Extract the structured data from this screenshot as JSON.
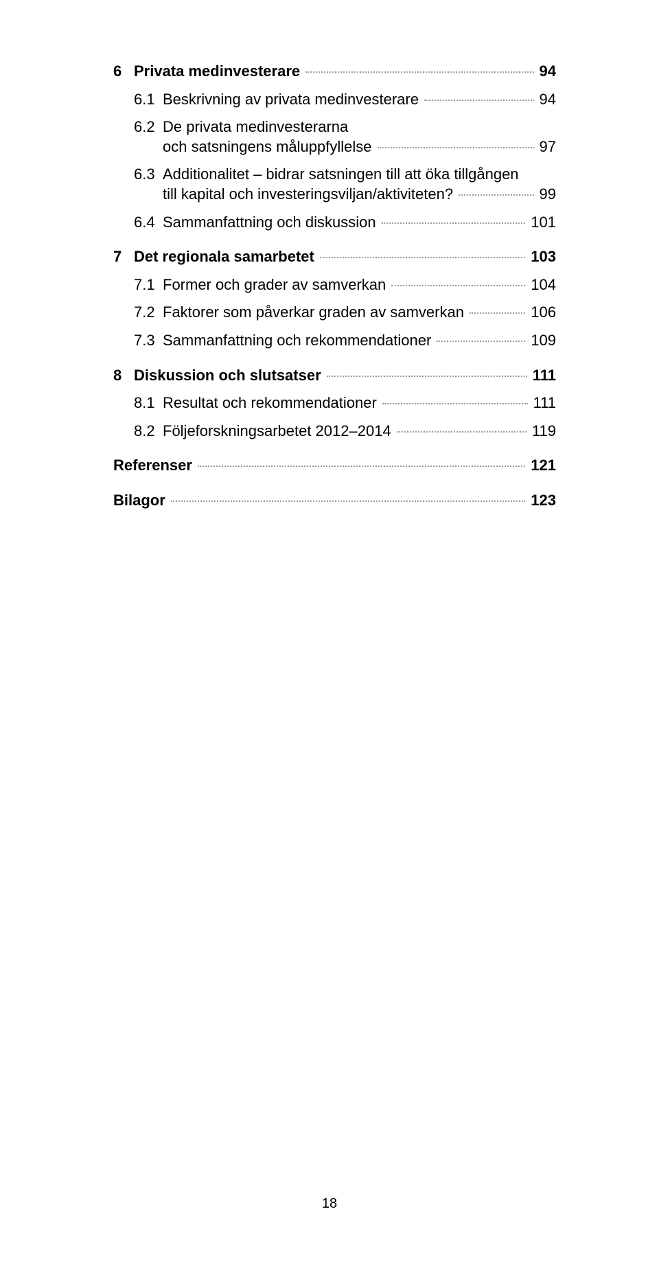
{
  "page_number": "18",
  "colors": {
    "text": "#000000",
    "leader": "#9a9a9a",
    "background": "#ffffff"
  },
  "typography": {
    "body_fontsize_pt": 16,
    "line_height": 1.3,
    "bold_weight": 700
  },
  "toc": [
    {
      "kind": "chapter",
      "num": "6",
      "label": "Privata medinvesterare",
      "page": "94"
    },
    {
      "kind": "section",
      "num": "6.1",
      "label": "Beskrivning av privata medinvesterare",
      "page": "94"
    },
    {
      "kind": "section-multiline",
      "num": "6.2",
      "line1": "De privata medinvesterarna",
      "line2": "och satsningens måluppfyllelse",
      "page": "97"
    },
    {
      "kind": "section-multiline",
      "num": "6.3",
      "line1": "Additionalitet – bidrar satsningen till att öka tillgången",
      "line2": "till kapital och investeringsviljan/aktiviteten?",
      "page": "99"
    },
    {
      "kind": "section",
      "num": "6.4",
      "label": "Sammanfattning och diskussion",
      "page": "101"
    },
    {
      "kind": "chapter",
      "num": "7",
      "label": "Det regionala samarbetet",
      "page": "103"
    },
    {
      "kind": "section",
      "num": "7.1",
      "label": "Former och grader av samverkan",
      "page": "104"
    },
    {
      "kind": "section",
      "num": "7.2",
      "label": "Faktorer som påverkar graden av samverkan",
      "page": "106"
    },
    {
      "kind": "section",
      "num": "7.3",
      "label": "Sammanfattning och rekommendationer",
      "page": "109"
    },
    {
      "kind": "chapter",
      "num": "8",
      "label": "Diskussion och slutsatser",
      "page": "111"
    },
    {
      "kind": "section",
      "num": "8.1",
      "label": "Resultat och rekommendationer",
      "page": "111"
    },
    {
      "kind": "section",
      "num": "8.2",
      "label": "Följeforskningsarbetet 2012–2014",
      "page": "119"
    },
    {
      "kind": "front",
      "label": "Referenser",
      "page": "121"
    },
    {
      "kind": "front",
      "label": "Bilagor",
      "page": "123"
    }
  ]
}
